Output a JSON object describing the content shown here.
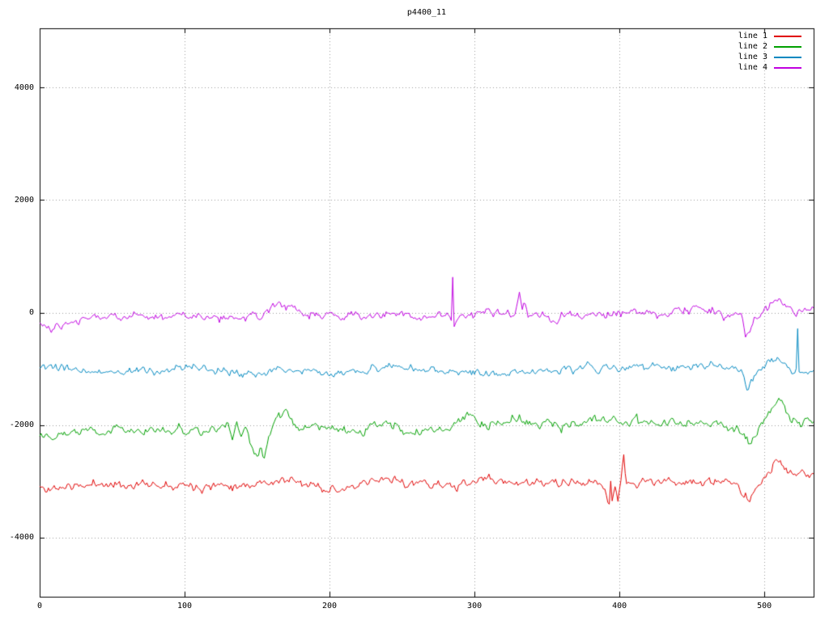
{
  "chart_data": {
    "type": "line",
    "title": "p4400_11",
    "xlabel": "",
    "ylabel": "",
    "xlim": [
      0,
      534
    ],
    "ylim": [
      -5050,
      5050
    ],
    "x_ticks": [
      0,
      100,
      200,
      300,
      400,
      500
    ],
    "y_ticks": [
      -4000,
      -2000,
      0,
      2000,
      4000
    ],
    "grid": true,
    "grid_style": "dotted",
    "legend_position": "top-right",
    "series": [
      {
        "name": "line 1",
        "color": "#e00000",
        "noise": {
          "sigma": 42,
          "alpha": 0.55,
          "seed": 11
        },
        "keypoints": [
          [
            0,
            -3100
          ],
          [
            5,
            -3160
          ],
          [
            10,
            -3120
          ],
          [
            20,
            -3080
          ],
          [
            30,
            -3100
          ],
          [
            40,
            -3020
          ],
          [
            50,
            -3060
          ],
          [
            60,
            -3070
          ],
          [
            70,
            -3040
          ],
          [
            80,
            -3070
          ],
          [
            90,
            -3030
          ],
          [
            100,
            -3050
          ],
          [
            110,
            -3080
          ],
          [
            120,
            -3070
          ],
          [
            130,
            -3050
          ],
          [
            140,
            -3060
          ],
          [
            150,
            -3030
          ],
          [
            160,
            -3000
          ],
          [
            170,
            -2980
          ],
          [
            180,
            -3040
          ],
          [
            190,
            -3080
          ],
          [
            200,
            -3120
          ],
          [
            210,
            -3150
          ],
          [
            220,
            -3100
          ],
          [
            230,
            -3020
          ],
          [
            240,
            -2950
          ],
          [
            250,
            -3000
          ],
          [
            260,
            -3050
          ],
          [
            270,
            -3040
          ],
          [
            280,
            -3060
          ],
          [
            290,
            -3100
          ],
          [
            300,
            -3000
          ],
          [
            310,
            -2950
          ],
          [
            320,
            -3000
          ],
          [
            330,
            -3030
          ],
          [
            340,
            -3020
          ],
          [
            350,
            -3040
          ],
          [
            360,
            -3050
          ],
          [
            370,
            -3030
          ],
          [
            380,
            -3020
          ],
          [
            388,
            -3050
          ],
          [
            391,
            -3200
          ],
          [
            393,
            -3380
          ],
          [
            394,
            -3000
          ],
          [
            395,
            -3350
          ],
          [
            397,
            -3050
          ],
          [
            399,
            -3300
          ],
          [
            401,
            -2950
          ],
          [
            403,
            -2620
          ],
          [
            405,
            -3080
          ],
          [
            410,
            -3040
          ],
          [
            420,
            -3000
          ],
          [
            430,
            -3010
          ],
          [
            440,
            -3000
          ],
          [
            450,
            -3010
          ],
          [
            460,
            -3020
          ],
          [
            470,
            -3020
          ],
          [
            480,
            -3060
          ],
          [
            485,
            -3150
          ],
          [
            489,
            -3320
          ],
          [
            493,
            -3150
          ],
          [
            497,
            -3050
          ],
          [
            500,
            -2950
          ],
          [
            505,
            -2800
          ],
          [
            508,
            -2600
          ],
          [
            510,
            -2570
          ],
          [
            513,
            -2750
          ],
          [
            516,
            -2870
          ],
          [
            520,
            -2900
          ],
          [
            527,
            -2880
          ],
          [
            534,
            -2860
          ]
        ]
      },
      {
        "name": "line 2",
        "color": "#00a000",
        "noise": {
          "sigma": 45,
          "alpha": 0.55,
          "seed": 22
        },
        "keypoints": [
          [
            0,
            -2150
          ],
          [
            10,
            -2130
          ],
          [
            20,
            -2120
          ],
          [
            30,
            -2110
          ],
          [
            40,
            -2100
          ],
          [
            50,
            -2090
          ],
          [
            60,
            -2080
          ],
          [
            70,
            -2100
          ],
          [
            80,
            -2120
          ],
          [
            90,
            -2110
          ],
          [
            100,
            -2100
          ],
          [
            110,
            -2090
          ],
          [
            120,
            -2080
          ],
          [
            126,
            -2100
          ],
          [
            130,
            -1950
          ],
          [
            133,
            -2250
          ],
          [
            136,
            -1980
          ],
          [
            139,
            -2200
          ],
          [
            142,
            -2050
          ],
          [
            145,
            -2300
          ],
          [
            148,
            -2480
          ],
          [
            151,
            -2600
          ],
          [
            153,
            -2400
          ],
          [
            155,
            -2580
          ],
          [
            158,
            -2250
          ],
          [
            161,
            -2050
          ],
          [
            164,
            -1900
          ],
          [
            167,
            -1820
          ],
          [
            170,
            -1760
          ],
          [
            173,
            -1850
          ],
          [
            176,
            -1950
          ],
          [
            180,
            -2000
          ],
          [
            190,
            -2060
          ],
          [
            200,
            -2120
          ],
          [
            210,
            -2110
          ],
          [
            220,
            -2100
          ],
          [
            230,
            -2050
          ],
          [
            240,
            -2000
          ],
          [
            250,
            -2050
          ],
          [
            260,
            -2100
          ],
          [
            270,
            -2050
          ],
          [
            280,
            -2100
          ],
          [
            290,
            -1950
          ],
          [
            295,
            -1850
          ],
          [
            300,
            -1900
          ],
          [
            310,
            -2000
          ],
          [
            320,
            -1950
          ],
          [
            330,
            -1900
          ],
          [
            340,
            -1950
          ],
          [
            350,
            -1980
          ],
          [
            360,
            -2000
          ],
          [
            370,
            -1980
          ],
          [
            380,
            -1950
          ],
          [
            390,
            -1900
          ],
          [
            400,
            -1950
          ],
          [
            410,
            -1940
          ],
          [
            420,
            -1950
          ],
          [
            430,
            -1980
          ],
          [
            440,
            -2000
          ],
          [
            450,
            -1990
          ],
          [
            460,
            -1980
          ],
          [
            470,
            -1990
          ],
          [
            482,
            -2050
          ],
          [
            486,
            -2250
          ],
          [
            489,
            -2360
          ],
          [
            492,
            -2200
          ],
          [
            496,
            -2050
          ],
          [
            500,
            -1900
          ],
          [
            504,
            -1750
          ],
          [
            507,
            -1600
          ],
          [
            510,
            -1520
          ],
          [
            513,
            -1700
          ],
          [
            516,
            -1850
          ],
          [
            520,
            -1900
          ],
          [
            526,
            -1950
          ],
          [
            530,
            -1920
          ],
          [
            534,
            -1940
          ]
        ]
      },
      {
        "name": "line 3",
        "color": "#0088c0",
        "noise": {
          "sigma": 38,
          "alpha": 0.55,
          "seed": 33
        },
        "keypoints": [
          [
            0,
            -980
          ],
          [
            10,
            -1000
          ],
          [
            20,
            -1020
          ],
          [
            30,
            -1040
          ],
          [
            40,
            -1050
          ],
          [
            50,
            -1055
          ],
          [
            60,
            -1060
          ],
          [
            70,
            -1050
          ],
          [
            80,
            -1040
          ],
          [
            90,
            -1030
          ],
          [
            100,
            -1020
          ],
          [
            110,
            -980
          ],
          [
            120,
            -1050
          ],
          [
            130,
            -1070
          ],
          [
            140,
            -1080
          ],
          [
            150,
            -1060
          ],
          [
            160,
            -1050
          ],
          [
            170,
            -1000
          ],
          [
            180,
            -1050
          ],
          [
            190,
            -1070
          ],
          [
            200,
            -1080
          ],
          [
            210,
            -1060
          ],
          [
            220,
            -1050
          ],
          [
            230,
            -1000
          ],
          [
            240,
            -950
          ],
          [
            250,
            -980
          ],
          [
            260,
            -1020
          ],
          [
            270,
            -1030
          ],
          [
            280,
            -1050
          ],
          [
            290,
            -1060
          ],
          [
            300,
            -1060
          ],
          [
            310,
            -1070
          ],
          [
            320,
            -1080
          ],
          [
            330,
            -1060
          ],
          [
            340,
            -1050
          ],
          [
            350,
            -1030
          ],
          [
            360,
            -1020
          ],
          [
            370,
            -980
          ],
          [
            380,
            -950
          ],
          [
            390,
            -1000
          ],
          [
            400,
            -980
          ],
          [
            410,
            -950
          ],
          [
            420,
            -980
          ],
          [
            430,
            -960
          ],
          [
            440,
            -950
          ],
          [
            450,
            -920
          ],
          [
            460,
            -950
          ],
          [
            470,
            -980
          ],
          [
            480,
            -1000
          ],
          [
            485,
            -1100
          ],
          [
            488,
            -1420
          ],
          [
            491,
            -1250
          ],
          [
            495,
            -1050
          ],
          [
            500,
            -950
          ],
          [
            504,
            -850
          ],
          [
            508,
            -780
          ],
          [
            512,
            -850
          ],
          [
            516,
            -950
          ],
          [
            520,
            -1060
          ],
          [
            522,
            -1000
          ],
          [
            523,
            -250
          ],
          [
            524,
            -1000
          ],
          [
            527,
            -1080
          ],
          [
            530,
            -1100
          ],
          [
            534,
            -1060
          ]
        ]
      },
      {
        "name": "line 4",
        "color": "#c000e0",
        "noise": {
          "sigma": 42,
          "alpha": 0.55,
          "seed": 44
        },
        "keypoints": [
          [
            0,
            -180
          ],
          [
            5,
            -280
          ],
          [
            8,
            -300
          ],
          [
            12,
            -220
          ],
          [
            16,
            -260
          ],
          [
            20,
            -180
          ],
          [
            30,
            -120
          ],
          [
            40,
            -80
          ],
          [
            50,
            -60
          ],
          [
            60,
            -100
          ],
          [
            70,
            -60
          ],
          [
            80,
            -120
          ],
          [
            90,
            -80
          ],
          [
            100,
            -30
          ],
          [
            110,
            -80
          ],
          [
            120,
            -50
          ],
          [
            130,
            -100
          ],
          [
            140,
            -80
          ],
          [
            150,
            -30
          ],
          [
            160,
            80
          ],
          [
            165,
            150
          ],
          [
            170,
            120
          ],
          [
            175,
            60
          ],
          [
            180,
            20
          ],
          [
            190,
            -20
          ],
          [
            200,
            -60
          ],
          [
            210,
            -100
          ],
          [
            215,
            -50
          ],
          [
            220,
            -80
          ],
          [
            230,
            -40
          ],
          [
            240,
            -60
          ],
          [
            250,
            -40
          ],
          [
            260,
            -80
          ],
          [
            270,
            -50
          ],
          [
            280,
            -60
          ],
          [
            282,
            -80
          ],
          [
            284,
            -120
          ],
          [
            285,
            680
          ],
          [
            286,
            -260
          ],
          [
            287,
            -150
          ],
          [
            289,
            -80
          ],
          [
            290,
            -50
          ],
          [
            300,
            0
          ],
          [
            310,
            30
          ],
          [
            320,
            -30
          ],
          [
            327,
            0
          ],
          [
            329,
            100
          ],
          [
            331,
            300
          ],
          [
            333,
            60
          ],
          [
            335,
            220
          ],
          [
            337,
            20
          ],
          [
            340,
            -60
          ],
          [
            350,
            -100
          ],
          [
            355,
            -150
          ],
          [
            360,
            -80
          ],
          [
            370,
            -30
          ],
          [
            380,
            0
          ],
          [
            390,
            -30
          ],
          [
            400,
            -20
          ],
          [
            410,
            0
          ],
          [
            420,
            -30
          ],
          [
            430,
            -20
          ],
          [
            440,
            30
          ],
          [
            450,
            80
          ],
          [
            455,
            120
          ],
          [
            460,
            30
          ],
          [
            470,
            0
          ],
          [
            480,
            -50
          ],
          [
            484,
            -80
          ],
          [
            487,
            -380
          ],
          [
            490,
            -250
          ],
          [
            494,
            -120
          ],
          [
            498,
            -30
          ],
          [
            503,
            80
          ],
          [
            507,
            180
          ],
          [
            510,
            260
          ],
          [
            513,
            150
          ],
          [
            517,
            90
          ],
          [
            521,
            60
          ],
          [
            526,
            30
          ],
          [
            530,
            20
          ],
          [
            534,
            50
          ]
        ]
      }
    ]
  }
}
